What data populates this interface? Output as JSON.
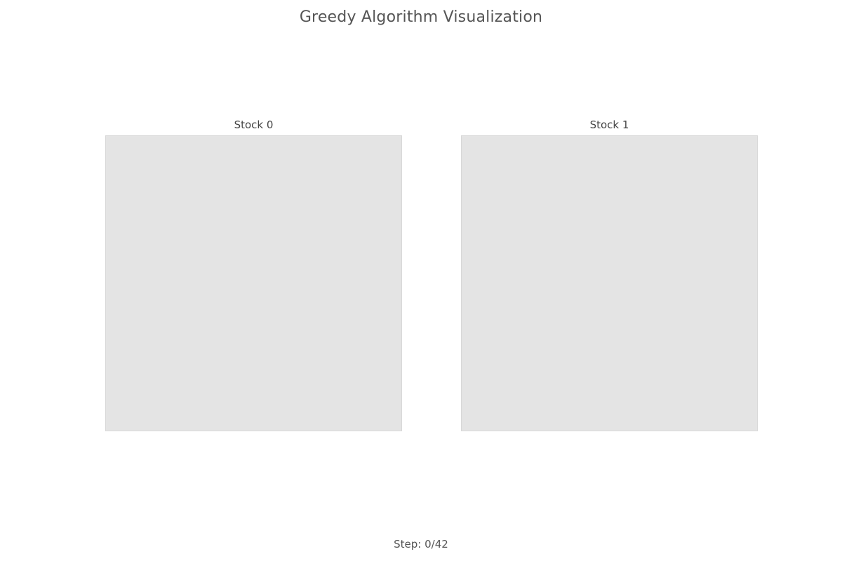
{
  "title": "Greedy Algorithm Visualization",
  "stocks": [
    {
      "label": "Stock 0"
    },
    {
      "label": "Stock 1"
    }
  ],
  "step": {
    "text": "Step: 0/42",
    "current": 0,
    "total": 42
  },
  "colors": {
    "background": "#ffffff",
    "stock_fill": "#e4e4e4",
    "text": "#444444"
  }
}
